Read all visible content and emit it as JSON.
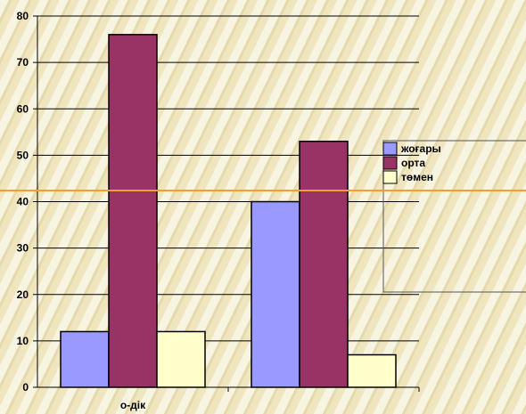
{
  "chart_data": {
    "type": "bar",
    "categories": [
      "о-дік",
      ""
    ],
    "series": [
      {
        "name": "жоғары",
        "values": [
          12,
          40
        ],
        "color": "#9999ff"
      },
      {
        "name": "орта",
        "values": [
          76,
          53
        ],
        "color": "#993366"
      },
      {
        "name": "төмен",
        "values": [
          12,
          7
        ],
        "color": "#ffffcc"
      }
    ],
    "ylim": [
      0,
      80
    ],
    "yticks": [
      0,
      10,
      20,
      30,
      40,
      50,
      60,
      70,
      80
    ],
    "title": "",
    "xlabel": "",
    "ylabel": "",
    "grid": true,
    "legend_position": "right",
    "colors": {
      "gridline": "#000000",
      "axis": "#000000",
      "accent_line": "#f0a030"
    }
  }
}
